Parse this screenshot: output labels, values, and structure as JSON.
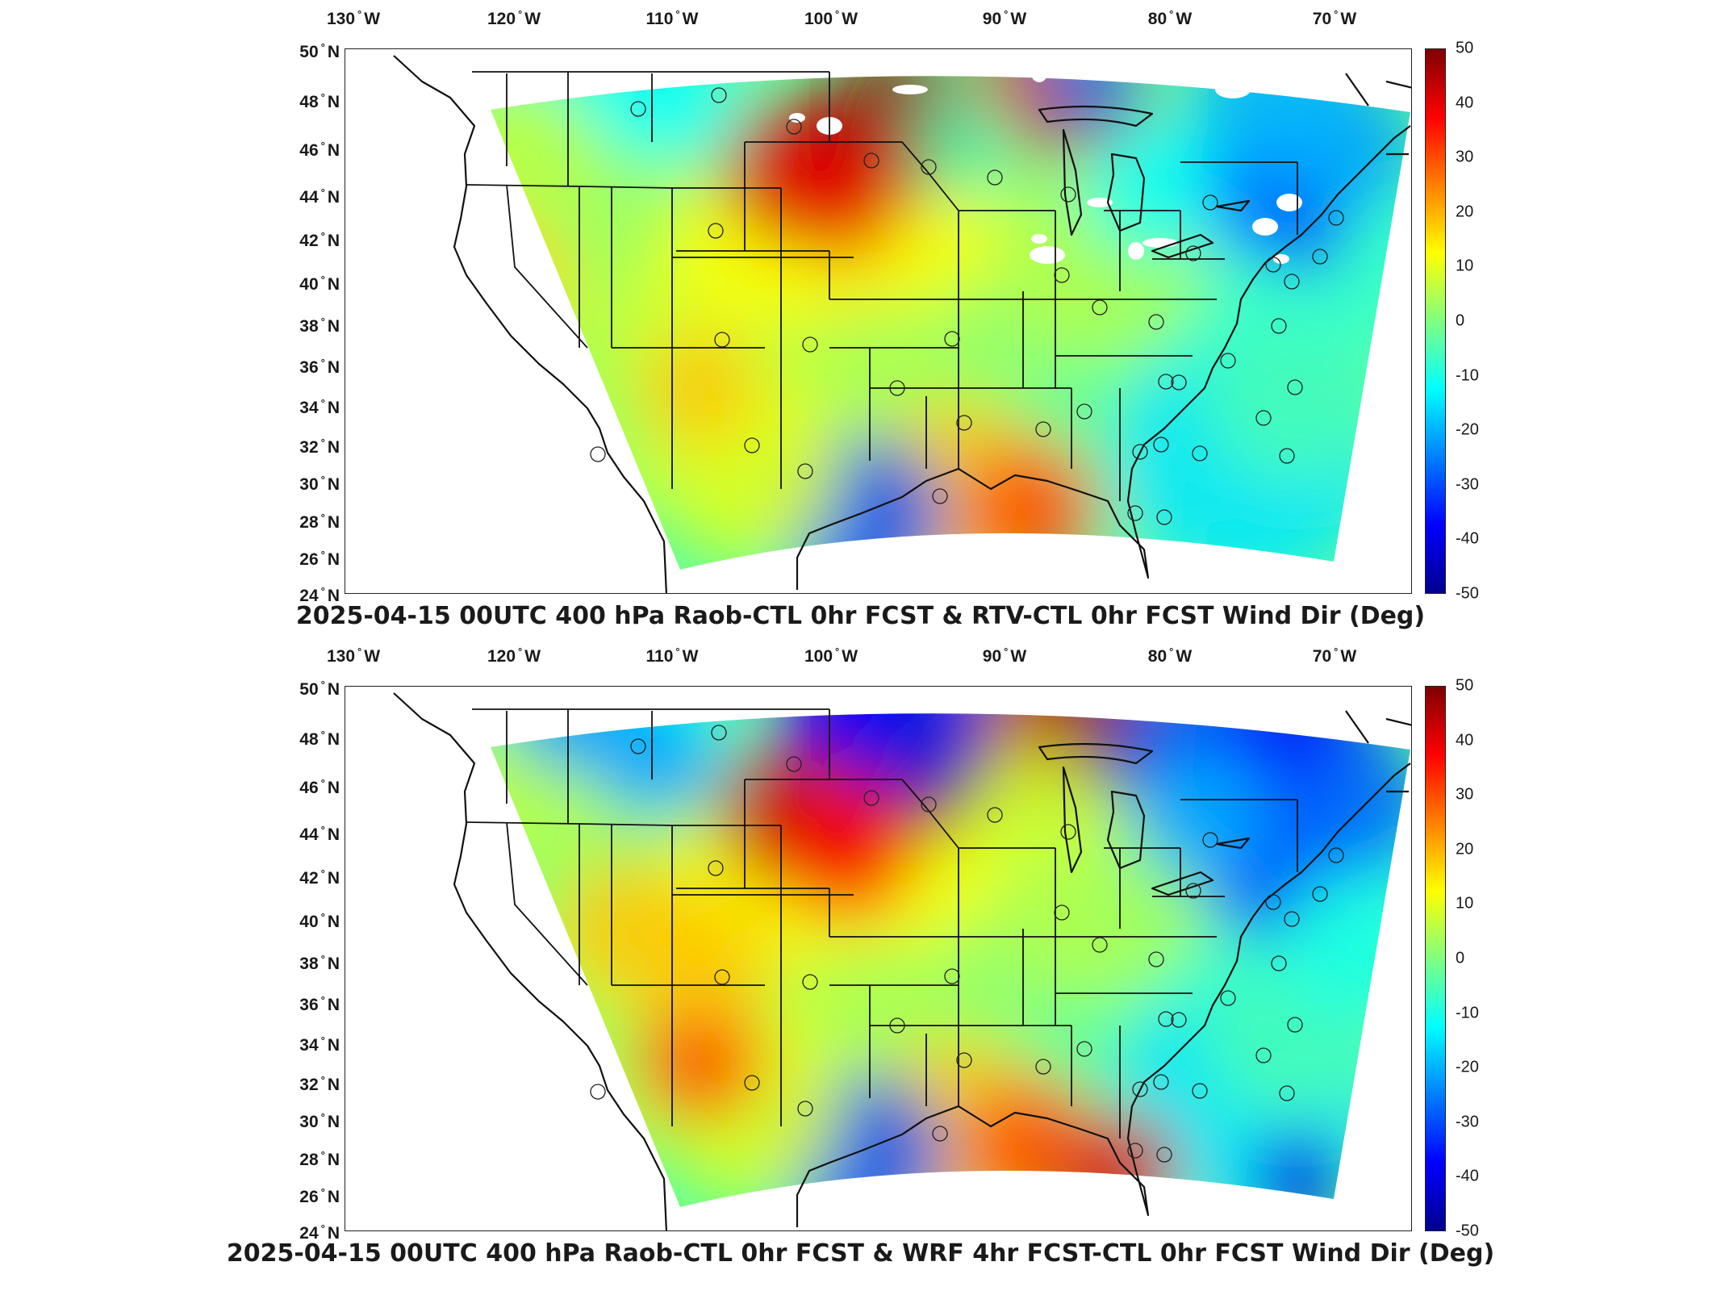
{
  "panels": [
    {
      "title": "2025-04-15 00UTC 400 hPa Raob-CTL 0hr FCST & RTV-CTL 0hr FCST Wind Dir (Deg)",
      "mode": "rtv"
    },
    {
      "title": "2025-04-15 00UTC 400 hPa Raob-CTL 0hr FCST & WRF 4hr FCST-CTL 0hr FCST Wind Dir (Deg)",
      "mode": "wrf"
    }
  ],
  "axes": {
    "lon_labels": [
      "130",
      "120",
      "110",
      "100",
      "90",
      "80",
      "70"
    ],
    "lon_hemisphere": "W",
    "lat_labels": [
      "50",
      "48",
      "46",
      "44",
      "42",
      "40",
      "38",
      "36",
      "34",
      "32",
      "30",
      "28",
      "26",
      "24"
    ],
    "lat_hemisphere": "N",
    "degree_symbol": "°"
  },
  "colorbar": {
    "labels": [
      "50",
      "40",
      "30",
      "20",
      "10",
      "0",
      "-10",
      "-20",
      "-30",
      "-40",
      "-50"
    ],
    "range": [
      -50,
      50
    ],
    "colormap": "jet",
    "colors": [
      "#00008f",
      "#0000ff",
      "#0080ff",
      "#00ffff",
      "#80ff80",
      "#ffff00",
      "#ff8000",
      "#ff0000",
      "#800000"
    ]
  },
  "map": {
    "projection": "lambert-conformal",
    "domain": "CONUS",
    "lon_range": [
      -132,
      -64
    ],
    "lat_range": [
      24,
      50
    ],
    "field_background": "#3bd8e0",
    "raob_station_marker": "circle"
  }
}
